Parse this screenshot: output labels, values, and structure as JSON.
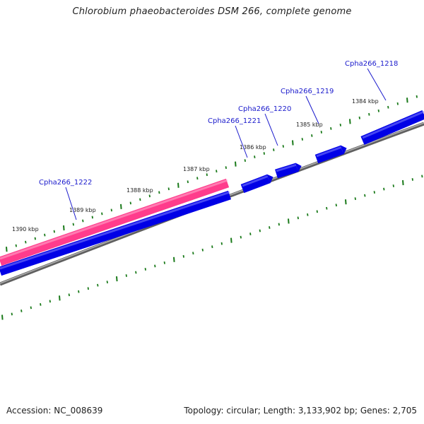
{
  "title": "Chlorobium phaeobacteroides DSM 266, complete genome",
  "footer": {
    "accession": "Accession: NC_008639",
    "summary": "Topology: circular; Length: 3,133,902 bp; Genes: 2,705"
  },
  "colors": {
    "forward_gene": "#0000e6",
    "reverse_gene": "#ff3c8c",
    "backbone": "#808080",
    "tick": "#1a7a1a",
    "label": "#1a1acc"
  },
  "tick_labels": [
    {
      "text": "1384 kbp"
    },
    {
      "text": "1385 kbp"
    },
    {
      "text": "1386 kbp"
    },
    {
      "text": "1387 kbp"
    },
    {
      "text": "1388 kbp"
    },
    {
      "text": "1389 kbp"
    },
    {
      "text": "1390 kbp"
    }
  ],
  "genes": [
    {
      "name": "Cpha266_1218",
      "strand": "forward"
    },
    {
      "name": "Cpha266_1219",
      "strand": "forward"
    },
    {
      "name": "Cpha266_1220",
      "strand": "forward"
    },
    {
      "name": "Cpha266_1221",
      "strand": "forward"
    },
    {
      "name": "Cpha266_1222",
      "strand": "reverse"
    }
  ]
}
